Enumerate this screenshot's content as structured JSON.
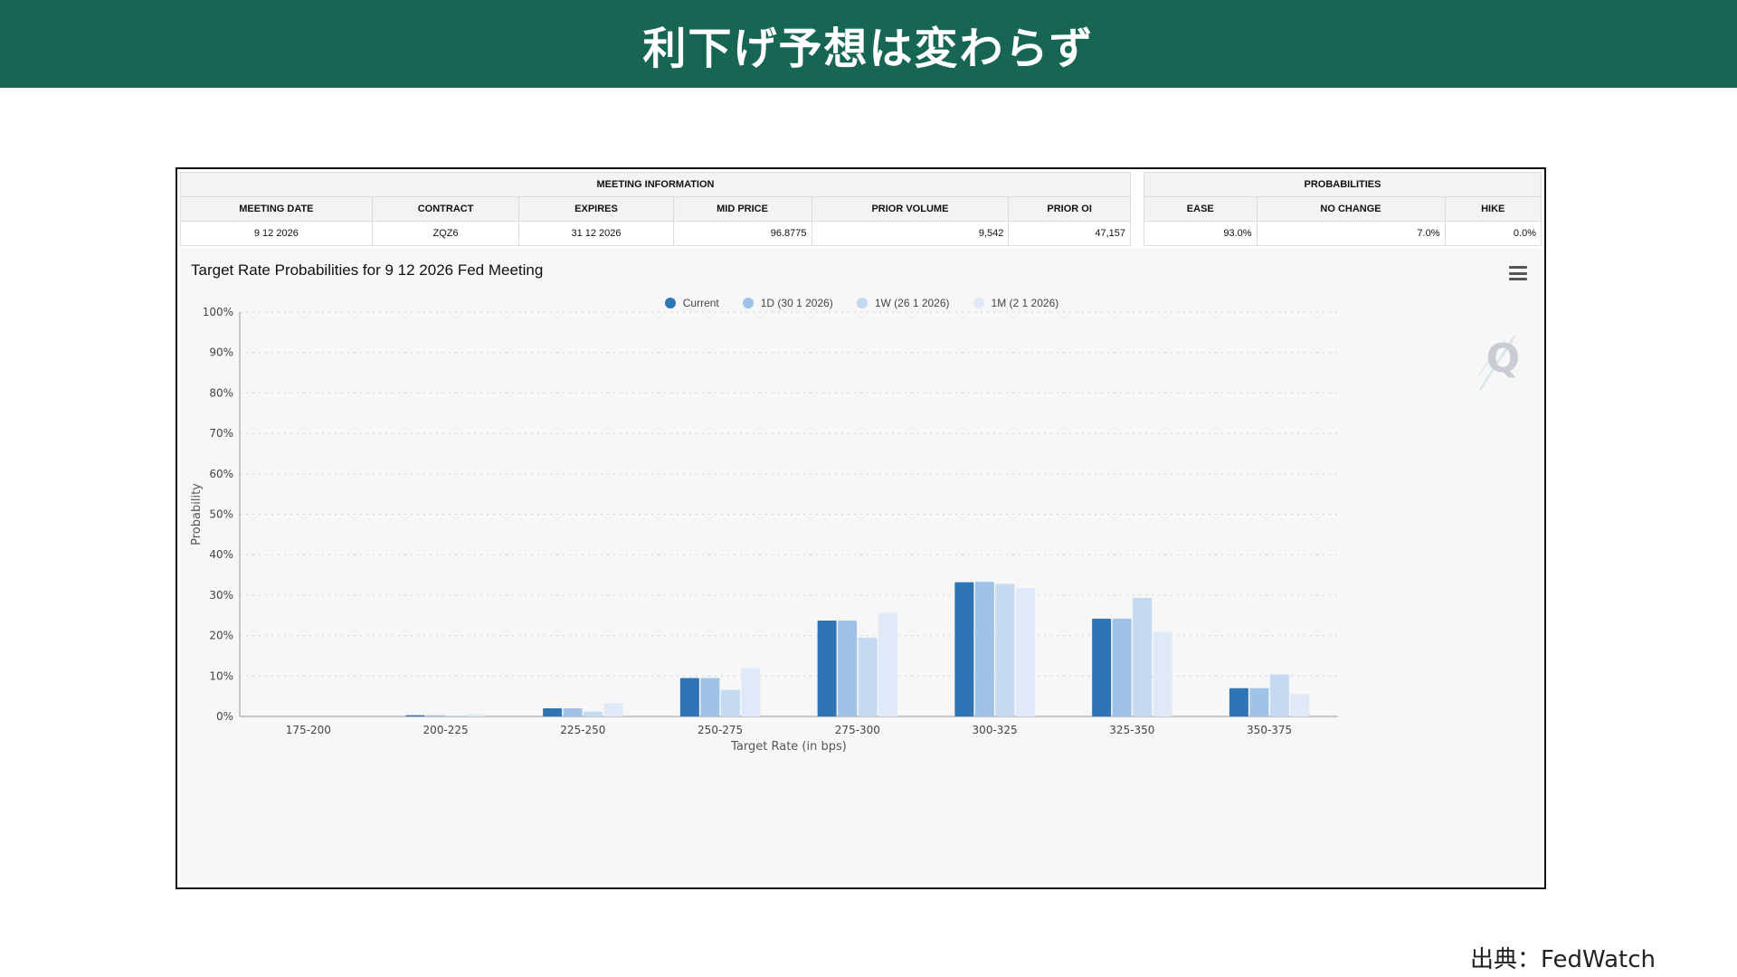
{
  "banner": {
    "title": "利下げ予想は変わらず"
  },
  "meeting_info": {
    "header": "MEETING INFORMATION",
    "columns": [
      "MEETING DATE",
      "CONTRACT",
      "EXPIRES",
      "MID PRICE",
      "PRIOR VOLUME",
      "PRIOR OI"
    ],
    "values": [
      "9 12 2026",
      "ZQZ6",
      "31 12 2026",
      "96.8775",
      "9,542",
      "47,157"
    ]
  },
  "probabilities": {
    "header": "PROBABILITIES",
    "columns": [
      "EASE",
      "NO CHANGE",
      "HIKE"
    ],
    "values": [
      "93.0%",
      "7.0%",
      "0.0%"
    ]
  },
  "chart_data": {
    "type": "bar",
    "title": "Target Rate Probabilities for 9 12 2026 Fed Meeting",
    "xlabel": "Target Rate (in bps)",
    "ylabel": "Probability",
    "categories": [
      "175-200",
      "200-225",
      "225-250",
      "250-275",
      "275-300",
      "300-325",
      "325-350",
      "350-375"
    ],
    "ylim": [
      0,
      100
    ],
    "yticks": [
      "0%",
      "10%",
      "20%",
      "30%",
      "40%",
      "50%",
      "60%",
      "70%",
      "80%",
      "90%",
      "100%"
    ],
    "grid": true,
    "legend_position": "top-center",
    "series": [
      {
        "name": "Current",
        "color": "#2f74b5",
        "values": [
          0.0,
          0.3,
          2.0,
          9.5,
          23.7,
          33.2,
          24.2,
          7.0
        ]
      },
      {
        "name": "1D (30 1 2026)",
        "color": "#9fc2e7",
        "values": [
          0.0,
          0.3,
          2.0,
          9.5,
          23.7,
          33.3,
          24.2,
          7.0
        ]
      },
      {
        "name": "1W (26 1 2026)",
        "color": "#c3daf2",
        "values": [
          0.0,
          0.2,
          1.2,
          6.6,
          19.5,
          32.8,
          29.3,
          10.4
        ]
      },
      {
        "name": "1M (2 1 2026)",
        "color": "#dfe9f7",
        "values": [
          0.0,
          0.5,
          3.3,
          12.0,
          25.6,
          31.7,
          20.9,
          5.5
        ]
      }
    ]
  },
  "icons": {
    "menu": "hamburger-menu-icon",
    "watermark": "Q"
  },
  "source": {
    "text": "出典：FedWatch"
  }
}
